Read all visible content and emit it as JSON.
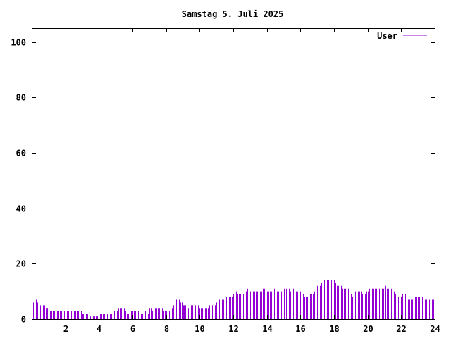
{
  "chart_data": {
    "type": "bar",
    "title": "Samstag 5. Juli 2025",
    "xlabel": "",
    "ylabel": "",
    "xlim": [
      0,
      24
    ],
    "ylim": [
      0,
      105
    ],
    "x_ticks": [
      2,
      4,
      6,
      8,
      10,
      12,
      14,
      16,
      18,
      20,
      22,
      24
    ],
    "y_ticks": [
      0,
      20,
      40,
      60,
      80,
      100
    ],
    "grid": false,
    "legend_position": "top-right",
    "interval_minutes": 5,
    "series": [
      {
        "name": "User",
        "color": "#9400d3",
        "values": [
          6,
          6,
          7,
          7,
          6,
          5,
          5,
          5,
          5,
          5,
          4,
          4,
          4,
          3,
          3,
          3,
          3,
          3,
          3,
          3,
          3,
          3,
          3,
          3,
          3,
          3,
          3,
          3,
          3,
          3,
          3,
          3,
          3,
          3,
          3,
          3,
          2,
          2,
          2,
          2,
          2,
          2,
          1,
          1,
          1,
          1,
          1,
          1,
          2,
          2,
          2,
          2,
          2,
          2,
          2,
          2,
          2,
          2,
          3,
          3,
          3,
          3,
          4,
          4,
          4,
          4,
          4,
          3,
          2,
          2,
          2,
          3,
          3,
          3,
          3,
          3,
          3,
          2,
          2,
          2,
          2,
          3,
          3,
          2,
          4,
          4,
          3,
          4,
          4,
          4,
          4,
          4,
          4,
          4,
          3,
          3,
          3,
          3,
          3,
          3,
          4,
          5,
          7,
          7,
          7,
          7,
          6,
          6,
          5,
          5,
          5,
          4,
          4,
          4,
          5,
          5,
          5,
          5,
          5,
          5,
          4,
          4,
          4,
          4,
          4,
          4,
          4,
          5,
          5,
          5,
          5,
          5,
          6,
          6,
          7,
          7,
          7,
          7,
          7,
          8,
          8,
          8,
          8,
          8,
          9,
          9,
          10,
          9,
          9,
          9,
          9,
          9,
          9,
          10,
          11,
          10,
          10,
          10,
          10,
          10,
          10,
          10,
          10,
          10,
          10,
          11,
          11,
          11,
          10,
          10,
          10,
          10,
          10,
          11,
          11,
          10,
          10,
          10,
          10,
          11,
          11,
          12,
          11,
          11,
          11,
          10,
          10,
          11,
          10,
          10,
          10,
          10,
          10,
          9,
          9,
          8,
          8,
          8,
          9,
          9,
          9,
          9,
          10,
          10,
          12,
          13,
          12,
          13,
          13,
          14,
          14,
          14,
          14,
          14,
          14,
          14,
          14,
          13,
          12,
          12,
          12,
          12,
          11,
          11,
          11,
          11,
          11,
          9,
          9,
          8,
          9,
          10,
          10,
          10,
          10,
          10,
          9,
          9,
          9,
          10,
          10,
          11,
          11,
          11,
          11,
          11,
          11,
          11,
          11,
          11,
          11,
          11,
          12,
          12,
          11,
          11,
          11,
          11,
          10,
          10,
          9,
          9,
          8,
          8,
          8,
          9,
          10,
          9,
          8,
          7,
          7,
          7,
          7,
          7,
          8,
          8,
          8,
          8,
          8,
          8,
          7,
          7,
          7,
          7,
          7,
          7,
          7,
          7
        ]
      }
    ]
  }
}
